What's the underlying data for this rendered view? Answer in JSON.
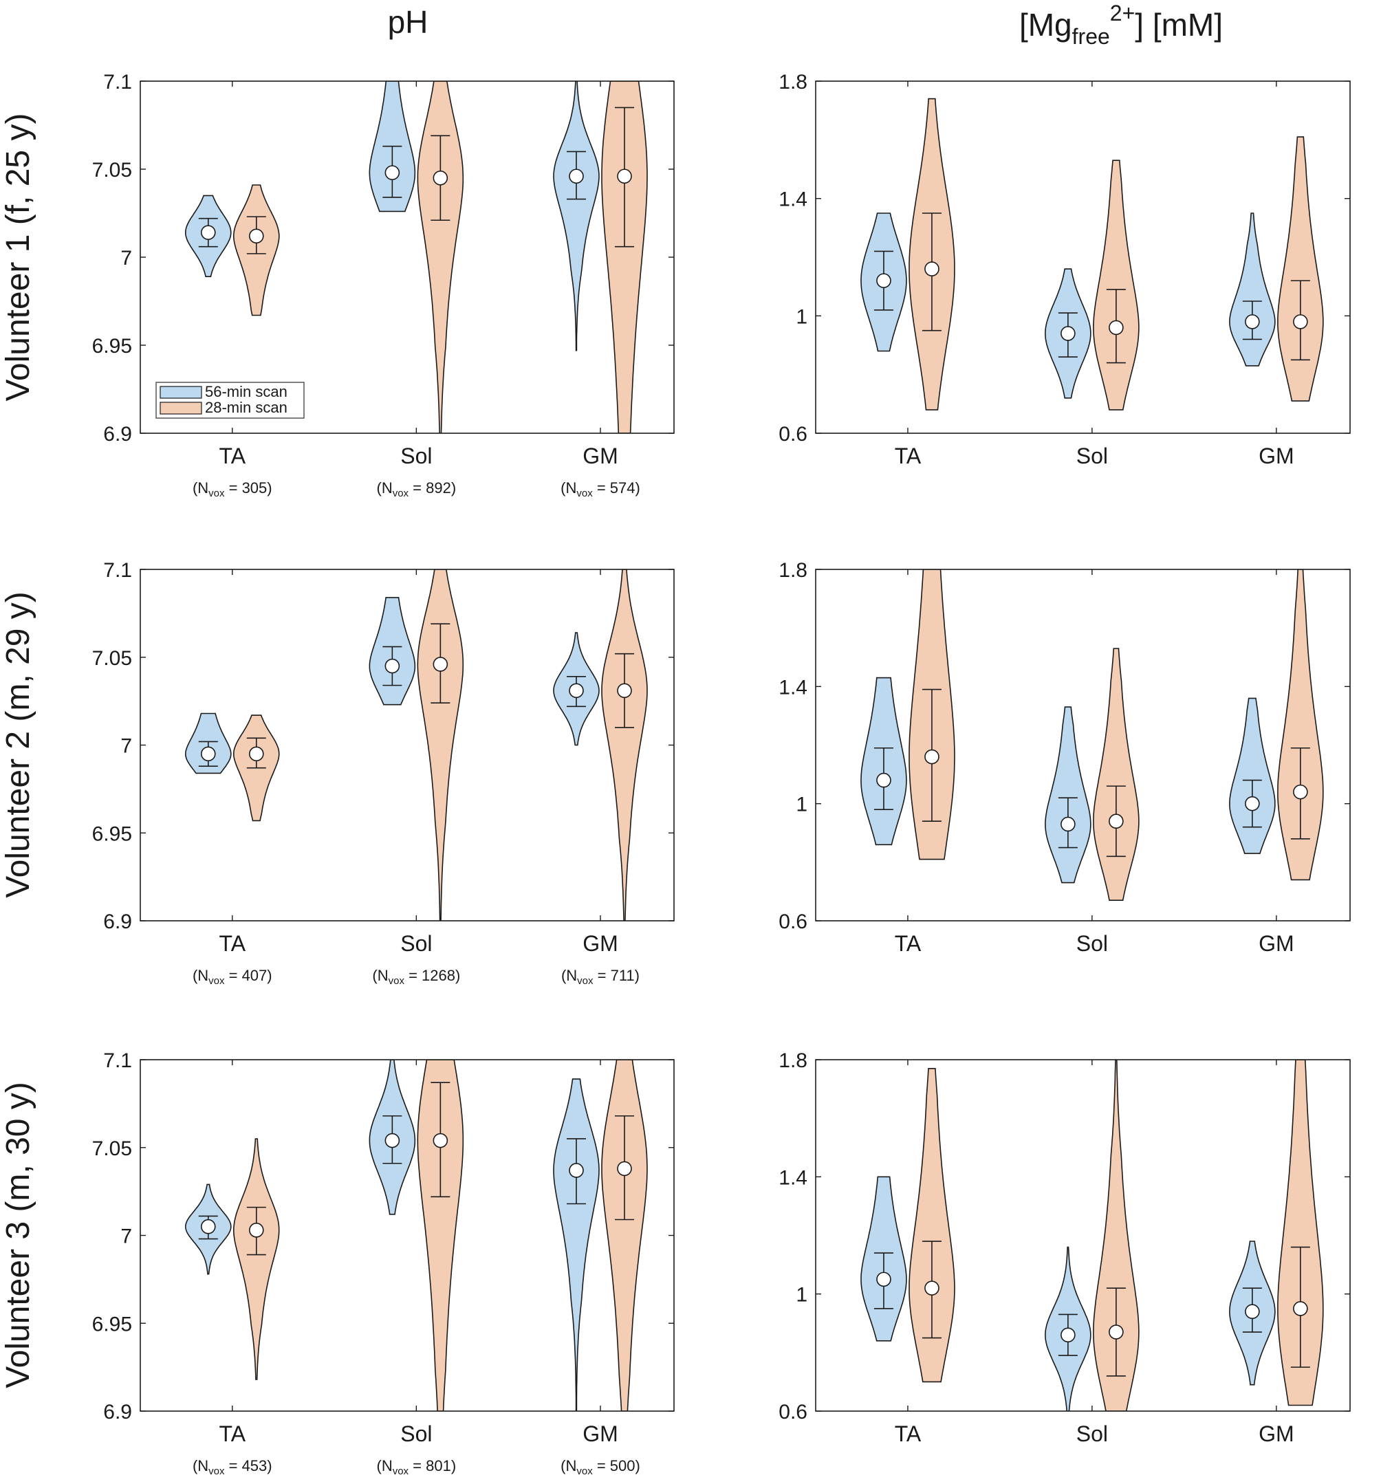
{
  "figure": {
    "col_titles": {
      "ph": "pH",
      "mg_prefix": "[Mg",
      "mg_sub": "free",
      "mg_sup": "2+",
      "mg_suffix": "] [mM]"
    },
    "row_labels": [
      "Volunteer 1 (f, 25 y)",
      "Volunteer 2 (m, 29 y)",
      "Volunteer 3 (m, 30 y)"
    ],
    "legend": [
      "56-min scan",
      "28-min scan"
    ],
    "colors": {
      "blue": "#bcd9ef",
      "orange": "#f4cdb5",
      "edge": "#1a1a1a"
    },
    "nvox_text": {
      "prefix": "(N",
      "sub": "vox",
      "eq": " = ",
      "suffix": ")"
    }
  },
  "chart_data": [
    {
      "type": "violin",
      "panel": "ph-volunteer-1",
      "categories": [
        "TA",
        "Sol",
        "GM"
      ],
      "nvox": [
        305,
        892,
        574
      ],
      "ylim": [
        6.9,
        7.1
      ],
      "yticks": [
        "6.9",
        "6.95",
        "7",
        "7.05",
        "7.1"
      ],
      "legend_position": "bottom-left",
      "series": [
        {
          "name": "56-min scan",
          "median": [
            7.014,
            7.048,
            7.046
          ],
          "q_low": [
            7.006,
            7.034,
            7.033
          ],
          "q_high": [
            7.022,
            7.063,
            7.06
          ],
          "min": [
            6.989,
            7.026,
            6.947
          ],
          "max": [
            7.035,
            7.1,
            7.1
          ]
        },
        {
          "name": "28-min scan",
          "median": [
            7.012,
            7.045,
            7.046
          ],
          "q_low": [
            7.002,
            7.021,
            7.006
          ],
          "q_high": [
            7.023,
            7.069,
            7.085
          ],
          "min": [
            6.967,
            6.9,
            6.9
          ],
          "max": [
            7.041,
            7.1,
            7.1
          ]
        }
      ]
    },
    {
      "type": "violin",
      "panel": "mg-volunteer-1",
      "categories": [
        "TA",
        "Sol",
        "GM"
      ],
      "ylim": [
        0.6,
        1.8
      ],
      "yticks": [
        "0.6",
        "1",
        "1.4",
        "1.8"
      ],
      "series": [
        {
          "name": "56-min scan",
          "median": [
            1.12,
            0.94,
            0.98
          ],
          "q_low": [
            1.02,
            0.86,
            0.92
          ],
          "q_high": [
            1.22,
            1.01,
            1.05
          ],
          "min": [
            0.88,
            0.72,
            0.83
          ],
          "max": [
            1.35,
            1.16,
            1.35
          ]
        },
        {
          "name": "28-min scan",
          "median": [
            1.16,
            0.96,
            0.98
          ],
          "q_low": [
            0.95,
            0.84,
            0.85
          ],
          "q_high": [
            1.35,
            1.09,
            1.12
          ],
          "min": [
            0.68,
            0.68,
            0.71
          ],
          "max": [
            1.74,
            1.53,
            1.61
          ]
        }
      ]
    },
    {
      "type": "violin",
      "panel": "ph-volunteer-2",
      "categories": [
        "TA",
        "Sol",
        "GM"
      ],
      "nvox": [
        407,
        1268,
        711
      ],
      "ylim": [
        6.9,
        7.1
      ],
      "yticks": [
        "6.9",
        "6.95",
        "7",
        "7.05",
        "7.1"
      ],
      "series": [
        {
          "name": "56-min scan",
          "median": [
            6.995,
            7.045,
            7.031
          ],
          "q_low": [
            6.988,
            7.034,
            7.022
          ],
          "q_high": [
            7.002,
            7.056,
            7.039
          ],
          "min": [
            6.984,
            7.023,
            7.0
          ],
          "max": [
            7.018,
            7.084,
            7.064
          ]
        },
        {
          "name": "28-min scan",
          "median": [
            6.995,
            7.046,
            7.031
          ],
          "q_low": [
            6.987,
            7.024,
            7.01
          ],
          "q_high": [
            7.004,
            7.069,
            7.052
          ],
          "min": [
            6.957,
            6.9,
            6.9
          ],
          "max": [
            7.017,
            7.1,
            7.1
          ]
        }
      ]
    },
    {
      "type": "violin",
      "panel": "mg-volunteer-2",
      "categories": [
        "TA",
        "Sol",
        "GM"
      ],
      "ylim": [
        0.6,
        1.8
      ],
      "yticks": [
        "0.6",
        "1",
        "1.4",
        "1.8"
      ],
      "series": [
        {
          "name": "56-min scan",
          "median": [
            1.08,
            0.93,
            1.0
          ],
          "q_low": [
            0.98,
            0.85,
            0.92
          ],
          "q_high": [
            1.19,
            1.02,
            1.08
          ],
          "min": [
            0.86,
            0.73,
            0.83
          ],
          "max": [
            1.43,
            1.33,
            1.36
          ]
        },
        {
          "name": "28-min scan",
          "median": [
            1.16,
            0.94,
            1.04
          ],
          "q_low": [
            0.94,
            0.82,
            0.88
          ],
          "q_high": [
            1.39,
            1.06,
            1.19
          ],
          "min": [
            0.81,
            0.67,
            0.74
          ],
          "max": [
            1.8,
            1.53,
            1.8
          ]
        }
      ]
    },
    {
      "type": "violin",
      "panel": "ph-volunteer-3",
      "categories": [
        "TA",
        "Sol",
        "GM"
      ],
      "nvox": [
        453,
        801,
        500
      ],
      "ylim": [
        6.9,
        7.1
      ],
      "yticks": [
        "6.9",
        "6.95",
        "7",
        "7.05",
        "7.1"
      ],
      "series": [
        {
          "name": "56-min scan",
          "median": [
            7.005,
            7.054,
            7.037
          ],
          "q_low": [
            6.998,
            7.041,
            7.018
          ],
          "q_high": [
            7.011,
            7.068,
            7.055
          ],
          "min": [
            6.978,
            7.012,
            6.9
          ],
          "max": [
            7.029,
            7.1,
            7.089
          ]
        },
        {
          "name": "28-min scan",
          "median": [
            7.003,
            7.054,
            7.038
          ],
          "q_low": [
            6.989,
            7.022,
            7.009
          ],
          "q_high": [
            7.016,
            7.087,
            7.068
          ],
          "min": [
            6.918,
            6.9,
            6.9
          ],
          "max": [
            7.055,
            7.1,
            7.1
          ]
        }
      ]
    },
    {
      "type": "violin",
      "panel": "mg-volunteer-3",
      "categories": [
        "TA",
        "Sol",
        "GM"
      ],
      "ylim": [
        0.6,
        1.8
      ],
      "yticks": [
        "0.6",
        "1",
        "1.4",
        "1.8"
      ],
      "series": [
        {
          "name": "56-min scan",
          "median": [
            1.05,
            0.86,
            0.94
          ],
          "q_low": [
            0.95,
            0.79,
            0.87
          ],
          "q_high": [
            1.14,
            0.93,
            1.02
          ],
          "min": [
            0.84,
            0.6,
            0.69
          ],
          "max": [
            1.4,
            1.16,
            1.18
          ]
        },
        {
          "name": "28-min scan",
          "median": [
            1.02,
            0.87,
            0.95
          ],
          "q_low": [
            0.85,
            0.72,
            0.75
          ],
          "q_high": [
            1.18,
            1.02,
            1.16
          ],
          "min": [
            0.7,
            0.6,
            0.62
          ],
          "max": [
            1.77,
            1.8,
            1.8
          ]
        }
      ]
    }
  ]
}
